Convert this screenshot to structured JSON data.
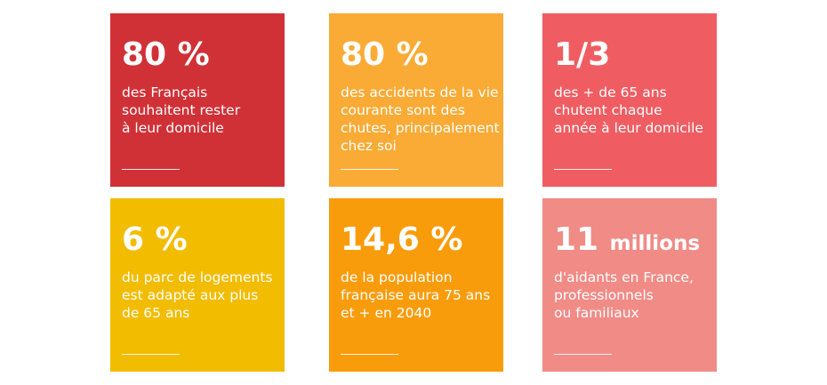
{
  "cards": [
    {
      "stat": "80 %",
      "unit": "",
      "description": "des Français\nsouhaitent rester\nà leur domicile",
      "color": "#d03137"
    },
    {
      "stat": "80 %",
      "unit": "",
      "description": "des accidents de la vie\ncourante sont des\nchutes, principalement\nchez soi",
      "color": "#f9ab35"
    },
    {
      "stat": "1/3",
      "unit": "",
      "description": "des + de 65 ans\nchutent chaque\nannée à leur domicile",
      "color": "#ef5d62"
    },
    {
      "stat": "6 %",
      "unit": "",
      "description": "du parc de logements\nest adapté aux plus\nde 65 ans",
      "color": "#f2bc00"
    },
    {
      "stat": "14,6 %",
      "unit": "",
      "description": "de la population\nfrançaise aura 75 ans\net + en 2040",
      "color": "#f99c0b"
    },
    {
      "stat": "11",
      "unit": "millions",
      "description": "d'aidants en France,\nprofessionnels\nou familiaux",
      "color": "#f08b86"
    }
  ]
}
